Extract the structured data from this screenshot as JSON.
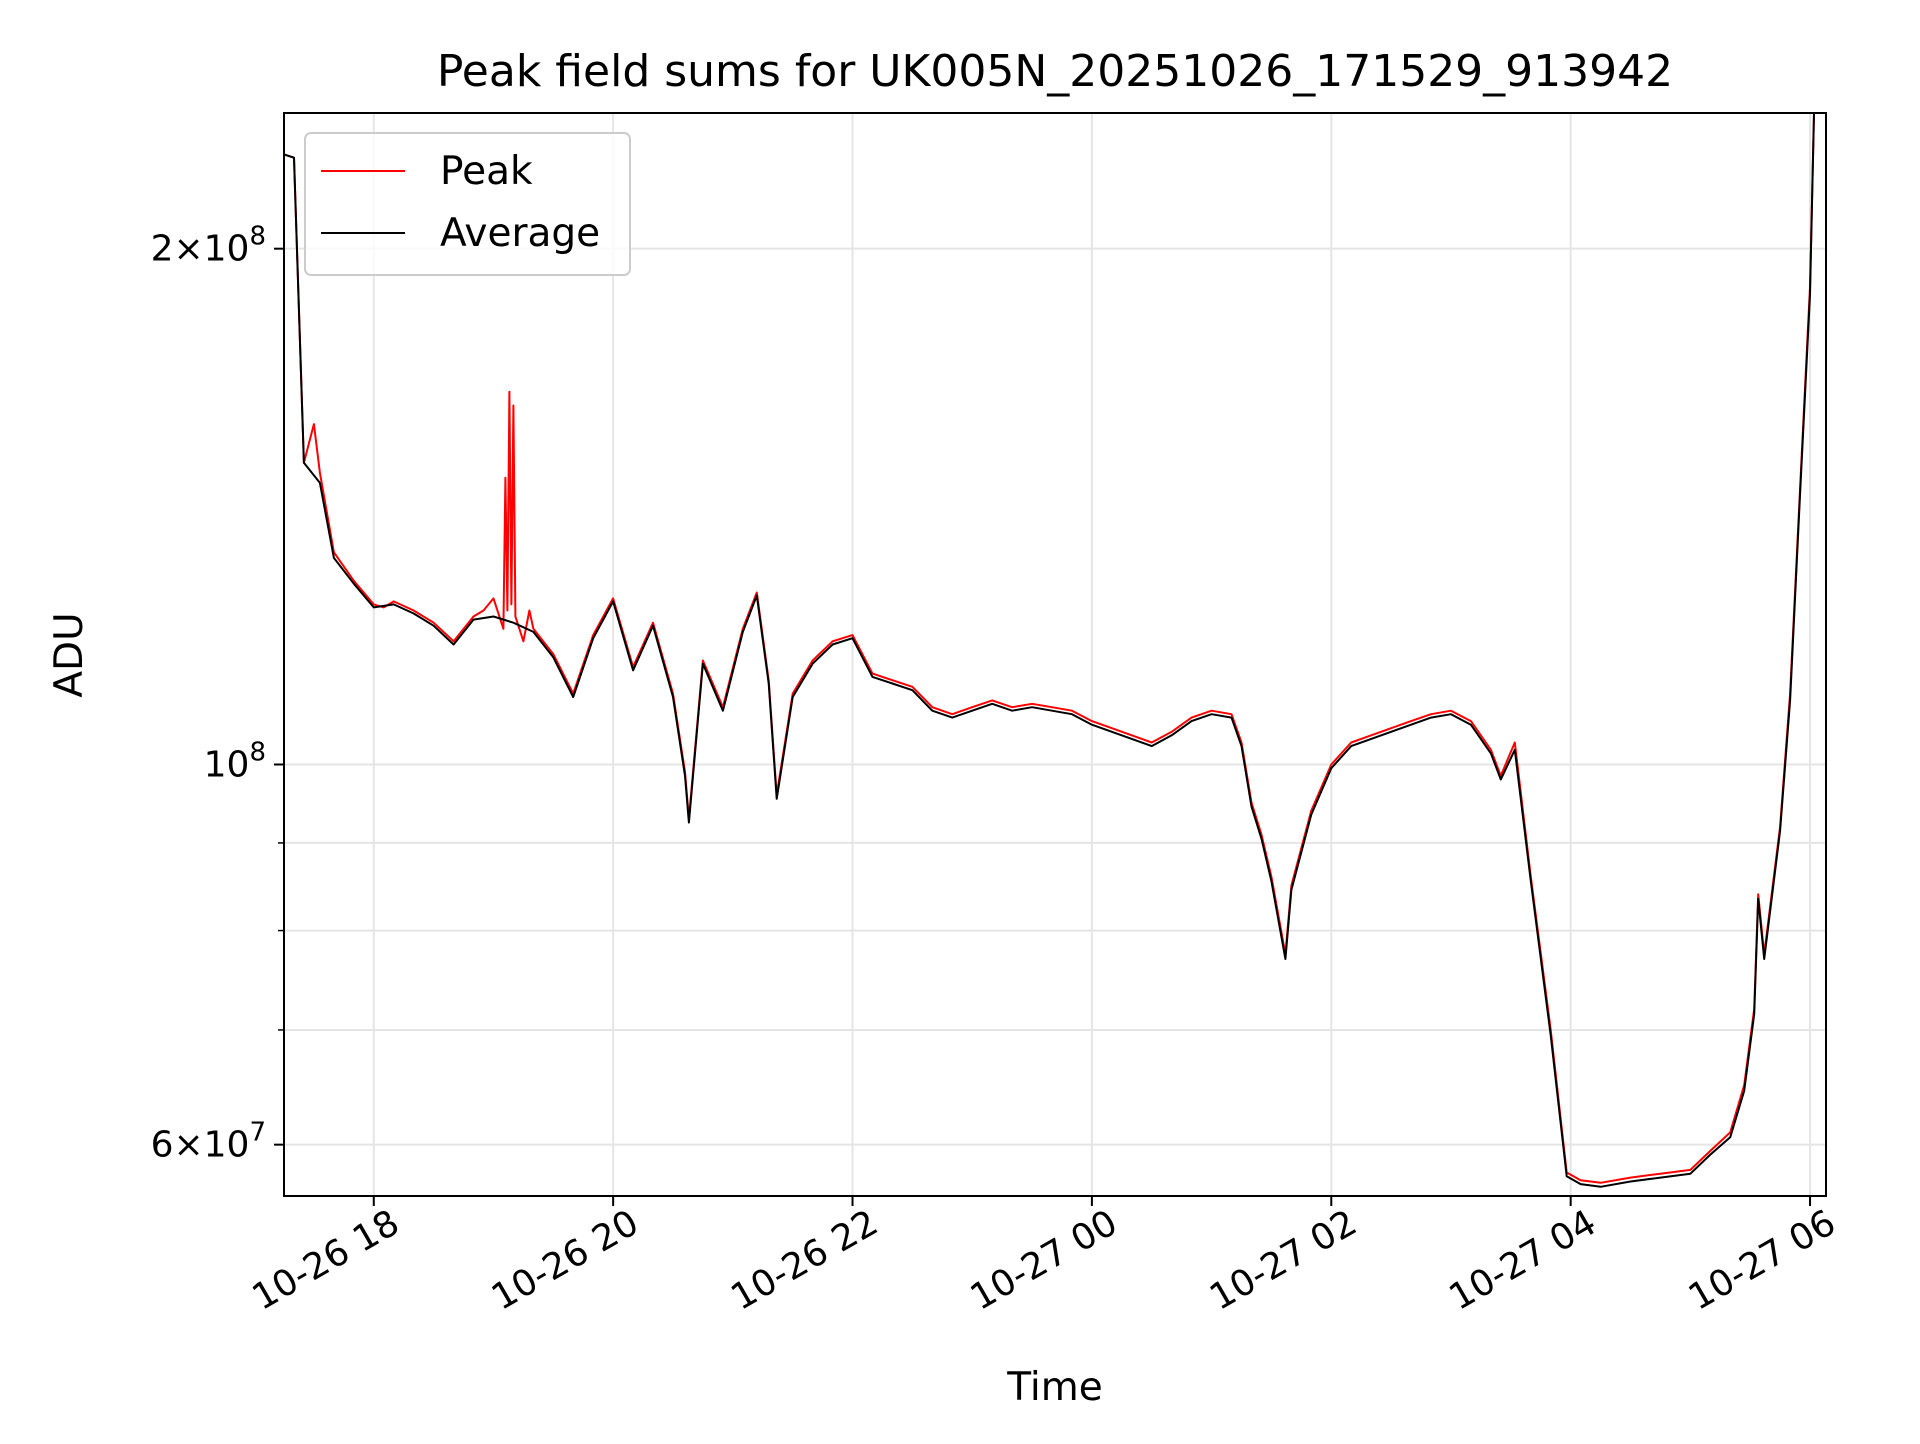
{
  "chart_data": {
    "type": "line",
    "title": "Peak field sums for UK005N_20251026_171529_913942",
    "xlabel": "Time",
    "ylabel": "ADU",
    "y_scale": "log",
    "ylim": [
      56000000,
      240000000
    ],
    "xlim": [
      "2025-10-26 17:15",
      "2025-10-27 06:08"
    ],
    "grid": true,
    "legend_position": "top-left",
    "x_ticks": [
      {
        "t": "2025-10-26 18:00",
        "label": "10-26 18"
      },
      {
        "t": "2025-10-26 20:00",
        "label": "10-26 20"
      },
      {
        "t": "2025-10-26 22:00",
        "label": "10-26 22"
      },
      {
        "t": "2025-10-27 00:00",
        "label": "10-27 00"
      },
      {
        "t": "2025-10-27 02:00",
        "label": "10-27 02"
      },
      {
        "t": "2025-10-27 04:00",
        "label": "10-27 04"
      },
      {
        "t": "2025-10-27 06:00",
        "label": "10-27 06"
      }
    ],
    "y_major_ticks": [
      {
        "value": 60000000,
        "mantissa": "6",
        "exponent": "7"
      },
      {
        "value": 100000000,
        "mantissa": "",
        "exponent": "8"
      },
      {
        "value": 200000000,
        "mantissa": "2",
        "exponent": "8"
      }
    ],
    "y_minor_gridlines": [
      70000000,
      80000000,
      90000000
    ],
    "series": [
      {
        "name": "Peak",
        "color": "#ff0000",
        "points": [
          [
            "2025-10-26 17:15",
            227000000
          ],
          [
            "2025-10-26 17:20",
            226000000
          ],
          [
            "2025-10-26 17:25",
            150000000
          ],
          [
            "2025-10-26 17:30",
            158000000
          ],
          [
            "2025-10-26 17:33",
            148000000
          ],
          [
            "2025-10-26 17:40",
            133000000
          ],
          [
            "2025-10-26 17:50",
            128000000
          ],
          [
            "2025-10-26 18:00",
            124000000
          ],
          [
            "2025-10-26 18:05",
            123500000
          ],
          [
            "2025-10-26 18:10",
            124500000
          ],
          [
            "2025-10-26 18:20",
            123000000
          ],
          [
            "2025-10-26 18:30",
            121000000
          ],
          [
            "2025-10-26 18:40",
            118000000
          ],
          [
            "2025-10-26 18:50",
            122000000
          ],
          [
            "2025-10-26 18:55",
            123000000
          ],
          [
            "2025-10-26 19:00",
            125000000
          ],
          [
            "2025-10-26 19:05",
            120000000
          ],
          [
            "2025-10-26 19:06",
            147000000
          ],
          [
            "2025-10-26 19:07",
            123000000
          ],
          [
            "2025-10-26 19:08",
            165000000
          ],
          [
            "2025-10-26 19:09",
            124000000
          ],
          [
            "2025-10-26 19:10",
            162000000
          ],
          [
            "2025-10-26 19:11",
            122000000
          ],
          [
            "2025-10-26 19:15",
            118000000
          ],
          [
            "2025-10-26 19:18",
            123000000
          ],
          [
            "2025-10-26 19:20",
            120000000
          ],
          [
            "2025-10-26 19:30",
            116000000
          ],
          [
            "2025-10-26 19:40",
            110000000
          ],
          [
            "2025-10-26 19:50",
            119000000
          ],
          [
            "2025-10-26 20:00",
            125000000
          ],
          [
            "2025-10-26 20:10",
            114000000
          ],
          [
            "2025-10-26 20:20",
            121000000
          ],
          [
            "2025-10-26 20:30",
            110000000
          ],
          [
            "2025-10-26 20:36",
            99000000
          ],
          [
            "2025-10-26 20:38",
            93000000
          ],
          [
            "2025-10-26 20:45",
            115000000
          ],
          [
            "2025-10-26 20:55",
            108000000
          ],
          [
            "2025-10-26 21:05",
            120000000
          ],
          [
            "2025-10-26 21:12",
            126000000
          ],
          [
            "2025-10-26 21:18",
            112000000
          ],
          [
            "2025-10-26 21:22",
            96000000
          ],
          [
            "2025-10-26 21:30",
            110000000
          ],
          [
            "2025-10-26 21:40",
            115000000
          ],
          [
            "2025-10-26 21:50",
            118000000
          ],
          [
            "2025-10-26 22:00",
            119000000
          ],
          [
            "2025-10-26 22:10",
            113000000
          ],
          [
            "2025-10-26 22:20",
            112000000
          ],
          [
            "2025-10-26 22:30",
            111000000
          ],
          [
            "2025-10-26 22:40",
            108000000
          ],
          [
            "2025-10-26 22:50",
            107000000
          ],
          [
            "2025-10-26 23:00",
            108000000
          ],
          [
            "2025-10-26 23:10",
            109000000
          ],
          [
            "2025-10-26 23:20",
            108000000
          ],
          [
            "2025-10-26 23:30",
            108500000
          ],
          [
            "2025-10-26 23:40",
            108000000
          ],
          [
            "2025-10-26 23:50",
            107500000
          ],
          [
            "2025-10-27 00:00",
            106000000
          ],
          [
            "2025-10-27 00:10",
            105000000
          ],
          [
            "2025-10-27 00:20",
            104000000
          ],
          [
            "2025-10-27 00:30",
            103000000
          ],
          [
            "2025-10-27 00:40",
            104500000
          ],
          [
            "2025-10-27 00:50",
            106500000
          ],
          [
            "2025-10-27 01:00",
            107500000
          ],
          [
            "2025-10-27 01:10",
            107000000
          ],
          [
            "2025-10-27 01:15",
            103000000
          ],
          [
            "2025-10-27 01:20",
            95000000
          ],
          [
            "2025-10-27 01:25",
            91000000
          ],
          [
            "2025-10-27 01:30",
            86000000
          ],
          [
            "2025-10-27 01:37",
            77500000
          ],
          [
            "2025-10-27 01:40",
            85000000
          ],
          [
            "2025-10-27 01:50",
            94000000
          ],
          [
            "2025-10-27 02:00",
            100000000
          ],
          [
            "2025-10-27 02:10",
            103000000
          ],
          [
            "2025-10-27 02:20",
            104000000
          ],
          [
            "2025-10-27 02:30",
            105000000
          ],
          [
            "2025-10-27 02:40",
            106000000
          ],
          [
            "2025-10-27 02:50",
            107000000
          ],
          [
            "2025-10-27 03:00",
            107500000
          ],
          [
            "2025-10-27 03:10",
            106000000
          ],
          [
            "2025-10-27 03:20",
            102000000
          ],
          [
            "2025-10-27 03:25",
            98500000
          ],
          [
            "2025-10-27 03:32",
            103000000
          ],
          [
            "2025-10-27 03:40",
            86000000
          ],
          [
            "2025-10-27 03:50",
            70000000
          ],
          [
            "2025-10-27 03:58",
            57800000
          ],
          [
            "2025-10-27 04:05",
            57200000
          ],
          [
            "2025-10-27 04:15",
            57000000
          ],
          [
            "2025-10-27 04:30",
            57400000
          ],
          [
            "2025-10-27 04:45",
            57700000
          ],
          [
            "2025-10-27 05:00",
            58000000
          ],
          [
            "2025-10-27 05:10",
            59500000
          ],
          [
            "2025-10-27 05:20",
            61000000
          ],
          [
            "2025-10-27 05:27",
            65000000
          ],
          [
            "2025-10-27 05:32",
            72000000
          ],
          [
            "2025-10-27 05:34",
            84000000
          ],
          [
            "2025-10-27 05:37",
            77500000
          ],
          [
            "2025-10-27 05:45",
            92000000
          ],
          [
            "2025-10-27 05:50",
            110000000
          ],
          [
            "2025-10-27 05:55",
            145000000
          ],
          [
            "2025-10-27 06:00",
            190000000
          ],
          [
            "2025-10-27 06:02",
            240000000
          ]
        ]
      },
      {
        "name": "Average",
        "color": "#000000",
        "points": [
          [
            "2025-10-26 17:15",
            227000000
          ],
          [
            "2025-10-26 17:20",
            226000000
          ],
          [
            "2025-10-26 17:25",
            150000000
          ],
          [
            "2025-10-26 17:33",
            146000000
          ],
          [
            "2025-10-26 17:40",
            132000000
          ],
          [
            "2025-10-26 17:50",
            127500000
          ],
          [
            "2025-10-26 18:00",
            123500000
          ],
          [
            "2025-10-26 18:10",
            124000000
          ],
          [
            "2025-10-26 18:20",
            122500000
          ],
          [
            "2025-10-26 18:30",
            120500000
          ],
          [
            "2025-10-26 18:40",
            117500000
          ],
          [
            "2025-10-26 18:50",
            121500000
          ],
          [
            "2025-10-26 19:00",
            122000000
          ],
          [
            "2025-10-26 19:10",
            121000000
          ],
          [
            "2025-10-26 19:20",
            119500000
          ],
          [
            "2025-10-26 19:30",
            115500000
          ],
          [
            "2025-10-26 19:40",
            109500000
          ],
          [
            "2025-10-26 19:50",
            118500000
          ],
          [
            "2025-10-26 20:00",
            124500000
          ],
          [
            "2025-10-26 20:10",
            113500000
          ],
          [
            "2025-10-26 20:20",
            120500000
          ],
          [
            "2025-10-26 20:30",
            109500000
          ],
          [
            "2025-10-26 20:36",
            98500000
          ],
          [
            "2025-10-26 20:38",
            92500000
          ],
          [
            "2025-10-26 20:45",
            114500000
          ],
          [
            "2025-10-26 20:55",
            107500000
          ],
          [
            "2025-10-26 21:05",
            119500000
          ],
          [
            "2025-10-26 21:12",
            125500000
          ],
          [
            "2025-10-26 21:18",
            111500000
          ],
          [
            "2025-10-26 21:22",
            95500000
          ],
          [
            "2025-10-26 21:30",
            109500000
          ],
          [
            "2025-10-26 21:40",
            114500000
          ],
          [
            "2025-10-26 21:50",
            117500000
          ],
          [
            "2025-10-26 22:00",
            118500000
          ],
          [
            "2025-10-26 22:10",
            112500000
          ],
          [
            "2025-10-26 22:20",
            111500000
          ],
          [
            "2025-10-26 22:30",
            110500000
          ],
          [
            "2025-10-26 22:40",
            107500000
          ],
          [
            "2025-10-26 22:50",
            106500000
          ],
          [
            "2025-10-26 23:00",
            107500000
          ],
          [
            "2025-10-26 23:10",
            108500000
          ],
          [
            "2025-10-26 23:20",
            107500000
          ],
          [
            "2025-10-26 23:30",
            108000000
          ],
          [
            "2025-10-26 23:40",
            107500000
          ],
          [
            "2025-10-26 23:50",
            107000000
          ],
          [
            "2025-10-27 00:00",
            105500000
          ],
          [
            "2025-10-27 00:10",
            104500000
          ],
          [
            "2025-10-27 00:20",
            103500000
          ],
          [
            "2025-10-27 00:30",
            102500000
          ],
          [
            "2025-10-27 00:40",
            104000000
          ],
          [
            "2025-10-27 00:50",
            106000000
          ],
          [
            "2025-10-27 01:00",
            107000000
          ],
          [
            "2025-10-27 01:10",
            106500000
          ],
          [
            "2025-10-27 01:15",
            102500000
          ],
          [
            "2025-10-27 01:20",
            94500000
          ],
          [
            "2025-10-27 01:25",
            90500000
          ],
          [
            "2025-10-27 01:30",
            85500000
          ],
          [
            "2025-10-27 01:37",
            77000000
          ],
          [
            "2025-10-27 01:40",
            84500000
          ],
          [
            "2025-10-27 01:50",
            93500000
          ],
          [
            "2025-10-27 02:00",
            99500000
          ],
          [
            "2025-10-27 02:10",
            102500000
          ],
          [
            "2025-10-27 02:20",
            103500000
          ],
          [
            "2025-10-27 02:30",
            104500000
          ],
          [
            "2025-10-27 02:40",
            105500000
          ],
          [
            "2025-10-27 02:50",
            106500000
          ],
          [
            "2025-10-27 03:00",
            107000000
          ],
          [
            "2025-10-27 03:10",
            105500000
          ],
          [
            "2025-10-27 03:20",
            101500000
          ],
          [
            "2025-10-27 03:25",
            98000000
          ],
          [
            "2025-10-27 03:32",
            102000000
          ],
          [
            "2025-10-27 03:40",
            85500000
          ],
          [
            "2025-10-27 03:50",
            69500000
          ],
          [
            "2025-10-27 03:58",
            57500000
          ],
          [
            "2025-10-27 04:05",
            56900000
          ],
          [
            "2025-10-27 04:15",
            56700000
          ],
          [
            "2025-10-27 04:30",
            57100000
          ],
          [
            "2025-10-27 04:45",
            57400000
          ],
          [
            "2025-10-27 05:00",
            57700000
          ],
          [
            "2025-10-27 05:10",
            59200000
          ],
          [
            "2025-10-27 05:20",
            60600000
          ],
          [
            "2025-10-27 05:27",
            64500000
          ],
          [
            "2025-10-27 05:32",
            71500000
          ],
          [
            "2025-10-27 05:34",
            83500000
          ],
          [
            "2025-10-27 05:37",
            77000000
          ],
          [
            "2025-10-27 05:45",
            91500000
          ],
          [
            "2025-10-27 05:50",
            109000000
          ],
          [
            "2025-10-27 05:55",
            144000000
          ],
          [
            "2025-10-27 06:00",
            188000000
          ],
          [
            "2025-10-27 06:02",
            240000000
          ]
        ]
      }
    ]
  }
}
